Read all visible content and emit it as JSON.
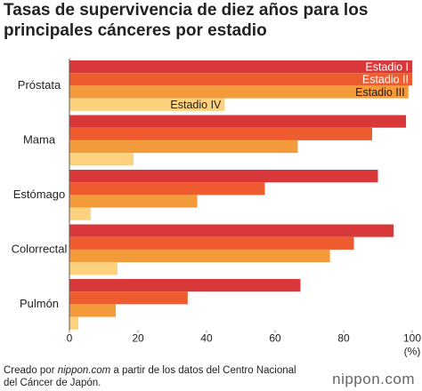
{
  "chart_data": {
    "type": "hbar",
    "title": [
      "Tasas de supervivencia de diez años para los",
      "principales cánceres por estadio"
    ],
    "categories": [
      "Próstata",
      "Mama",
      "Estómago",
      "Colorrectal",
      "Pulmón"
    ],
    "series": [
      {
        "name": "Estadio I",
        "color": "#d9383a",
        "values": [
          100,
          98.2,
          90,
          94.6,
          67.4
        ]
      },
      {
        "name": "Estadio II",
        "color": "#ee5b2f",
        "values": [
          100,
          88.3,
          57,
          83,
          34.5
        ]
      },
      {
        "name": "Estadio III",
        "color": "#f39a3a",
        "values": [
          98.9,
          66.6,
          37.3,
          76,
          13.5
        ]
      },
      {
        "name": "Estadio IV",
        "color": "#fdd27f",
        "values": [
          45.3,
          18.7,
          6.2,
          14,
          2.6
        ]
      }
    ],
    "xlim": [
      0,
      100
    ],
    "xticks": [
      0,
      20,
      40,
      60,
      80,
      100
    ],
    "x_unit": "(%)",
    "footer": [
      "Creado por ",
      "nippon.com",
      " a partir de los datos del Centro Nacional",
      "del Cáncer de Japón."
    ],
    "logo": "nippon.com"
  }
}
